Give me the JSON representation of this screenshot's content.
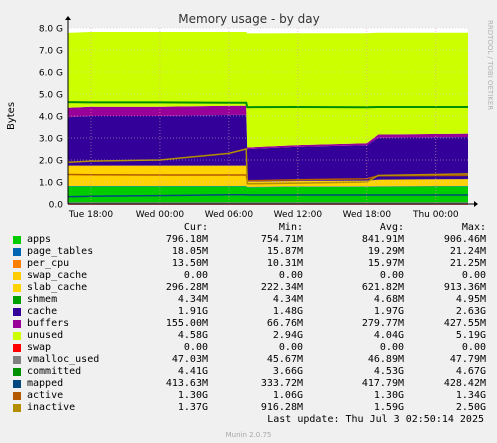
{
  "chart_data": {
    "type": "area",
    "title": "Memory usage - by day",
    "ylabel": "Bytes",
    "ylim": [
      0,
      8.0
    ],
    "y_ticks": [
      "0.0",
      "1.0 G",
      "2.0 G",
      "3.0 G",
      "4.0 G",
      "5.0 G",
      "6.0 G",
      "7.0 G",
      "8.0 G"
    ],
    "x_ticks": [
      "Tue 18:00",
      "Wed 00:00",
      "Wed 06:00",
      "Wed 12:00",
      "Wed 18:00",
      "Thu 00:00"
    ],
    "x_tick_hours": [
      0,
      6,
      12,
      18,
      24,
      30
    ],
    "x_range_hours": [
      -2,
      32.8
    ],
    "x": [
      -2,
      0,
      6,
      12,
      13.5,
      13.6,
      18,
      24,
      25,
      32.8
    ],
    "grid": true,
    "side_text": "RRDTOOL / TOBI OETIKER",
    "stacked_series": [
      {
        "name": "apps",
        "color": "#00cc00",
        "values": [
          0.8,
          0.8,
          0.8,
          0.8,
          0.8,
          0.76,
          0.78,
          0.78,
          0.79,
          0.8
        ]
      },
      {
        "name": "page_tables",
        "color": "#0066b3",
        "values": [
          0.018,
          0.018,
          0.018,
          0.018,
          0.018,
          0.016,
          0.018,
          0.019,
          0.019,
          0.018
        ]
      },
      {
        "name": "per_cpu",
        "color": "#ff8000",
        "values": [
          0.016,
          0.016,
          0.016,
          0.016,
          0.016,
          0.016,
          0.016,
          0.016,
          0.016,
          0.014
        ]
      },
      {
        "name": "swap_cache",
        "color": "#ffcc00",
        "values": [
          0,
          0,
          0,
          0,
          0,
          0,
          0,
          0,
          0,
          0
        ]
      },
      {
        "name": "slab_cache",
        "color": "#ffd200",
        "values": [
          0.91,
          0.91,
          0.91,
          0.91,
          0.91,
          0.22,
          0.23,
          0.25,
          0.28,
          0.3
        ]
      },
      {
        "name": "shmem",
        "color": "#330099",
        "values": [
          0.005,
          0.005,
          0.005,
          0.005,
          0.005,
          0.004,
          0.005,
          0.005,
          0.005,
          0.004
        ]
      },
      {
        "name": "cache",
        "color": "#330099",
        "values": [
          2.2,
          2.25,
          2.25,
          2.3,
          2.3,
          1.48,
          1.55,
          1.6,
          1.9,
          1.91
        ]
      },
      {
        "name": "buffers",
        "color": "#990099",
        "values": [
          0.43,
          0.42,
          0.42,
          0.42,
          0.42,
          0.07,
          0.08,
          0.09,
          0.15,
          0.155
        ]
      },
      {
        "name": "unused",
        "color": "#ccff00",
        "values": [
          3.4,
          3.4,
          3.4,
          3.35,
          3.35,
          5.19,
          5.08,
          5.0,
          4.62,
          4.58
        ]
      }
    ],
    "line_series": [
      {
        "name": "swap",
        "color": "#ff0000",
        "values": [
          0,
          0,
          0,
          0,
          0,
          0,
          0,
          0,
          0,
          0
        ]
      },
      {
        "name": "vmalloc_used",
        "color": "#808080",
        "values": [
          0.047,
          0.047,
          0.047,
          0.047,
          0.047,
          0.046,
          0.047,
          0.047,
          0.047,
          0.047
        ]
      },
      {
        "name": "committed",
        "color": "#008f00",
        "values": [
          4.63,
          4.62,
          4.62,
          4.6,
          4.6,
          4.4,
          4.41,
          4.4,
          4.41,
          4.41
        ]
      },
      {
        "name": "mapped",
        "color": "#00487d",
        "values": [
          0.33,
          0.35,
          0.38,
          0.42,
          0.42,
          0.41,
          0.41,
          0.41,
          0.41,
          0.41
        ]
      },
      {
        "name": "active",
        "color": "#b35a00",
        "values": [
          1.34,
          1.33,
          1.32,
          1.32,
          1.32,
          1.06,
          1.1,
          1.15,
          1.28,
          1.3
        ]
      },
      {
        "name": "inactive",
        "color": "#b38f00",
        "values": [
          1.9,
          1.95,
          2.0,
          2.3,
          2.5,
          0.92,
          0.95,
          1.0,
          1.3,
          1.37
        ]
      }
    ]
  },
  "legend": {
    "headers": [
      "Cur:",
      "Min:",
      "Avg:",
      "Max:"
    ],
    "rows": [
      {
        "name": "apps",
        "color": "#00cc00",
        "cur": "796.18M",
        "min": "754.71M",
        "avg": "841.91M",
        "max": "906.46M"
      },
      {
        "name": "page_tables",
        "color": "#0066b3",
        "cur": "18.05M",
        "min": "15.87M",
        "avg": "19.29M",
        "max": "21.24M"
      },
      {
        "name": "per_cpu",
        "color": "#ff8000",
        "cur": "13.50M",
        "min": "10.31M",
        "avg": "15.97M",
        "max": "21.25M"
      },
      {
        "name": "swap_cache",
        "color": "#ffcc00",
        "cur": "0.00",
        "min": "0.00",
        "avg": "0.00",
        "max": "0.00"
      },
      {
        "name": "slab_cache",
        "color": "#ffd200",
        "cur": "296.28M",
        "min": "222.34M",
        "avg": "621.82M",
        "max": "913.36M"
      },
      {
        "name": "shmem",
        "color": "#00a000",
        "cur": "4.34M",
        "min": "4.34M",
        "avg": "4.68M",
        "max": "4.95M"
      },
      {
        "name": "cache",
        "color": "#330099",
        "cur": "1.91G",
        "min": "1.48G",
        "avg": "1.97G",
        "max": "2.63G"
      },
      {
        "name": "buffers",
        "color": "#990099",
        "cur": "155.00M",
        "min": "66.76M",
        "avg": "279.77M",
        "max": "427.55M"
      },
      {
        "name": "unused",
        "color": "#ccff00",
        "cur": "4.58G",
        "min": "2.94G",
        "avg": "4.04G",
        "max": "5.19G"
      },
      {
        "name": "swap",
        "color": "#ff0000",
        "cur": "0.00",
        "min": "0.00",
        "avg": "0.00",
        "max": "0.00"
      },
      {
        "name": "vmalloc_used",
        "color": "#808080",
        "cur": "47.03M",
        "min": "45.67M",
        "avg": "46.89M",
        "max": "47.79M"
      },
      {
        "name": "committed",
        "color": "#008f00",
        "cur": "4.41G",
        "min": "3.66G",
        "avg": "4.53G",
        "max": "4.67G"
      },
      {
        "name": "mapped",
        "color": "#00487d",
        "cur": "413.63M",
        "min": "333.72M",
        "avg": "417.79M",
        "max": "428.42M"
      },
      {
        "name": "active",
        "color": "#b35a00",
        "cur": "1.30G",
        "min": "1.06G",
        "avg": "1.30G",
        "max": "1.34G"
      },
      {
        "name": "inactive",
        "color": "#b38f00",
        "cur": "1.37G",
        "min": "916.28M",
        "avg": "1.59G",
        "max": "2.50G"
      }
    ]
  },
  "footer": {
    "last_update": "Last update: Thu Jul  3 02:50:14 2025",
    "munin_version": "Munin 2.0.75"
  }
}
